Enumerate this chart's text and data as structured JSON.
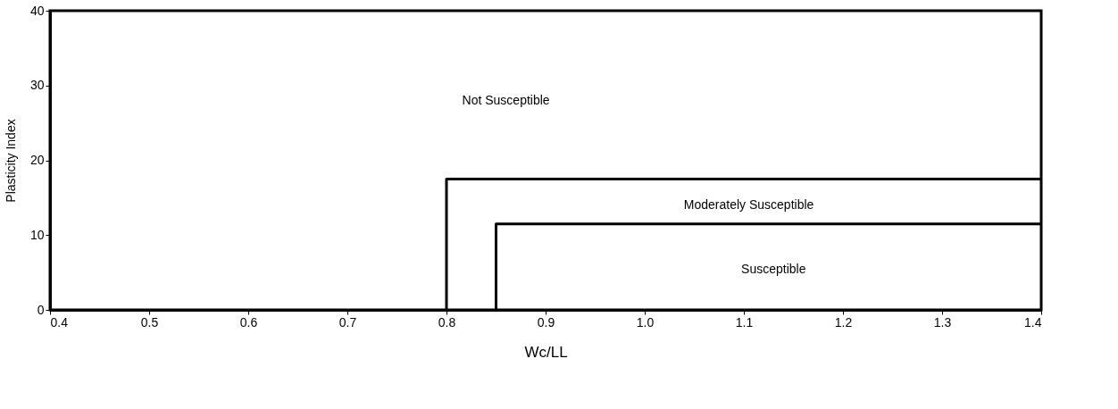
{
  "chart_data": {
    "type": "line",
    "xlabel": "Wc/LL",
    "ylabel": "Plasticity Index",
    "xlim": [
      0.4,
      1.4
    ],
    "xticks": [
      0.4,
      0.5,
      0.6,
      0.7,
      0.8,
      0.9,
      {
        "value": 1.0,
        "label": "1.0"
      },
      1.1,
      1.2,
      1.3,
      1.4
    ],
    "ylim": [
      0,
      40
    ],
    "yticks": [
      0,
      10,
      20,
      30,
      40
    ],
    "grid": false,
    "marker": "none",
    "line_style": "solid",
    "series": [
      {
        "color": "#000000",
        "x": [
          0.8,
          0.8,
          1.4
        ],
        "values": [
          0,
          17.5,
          17.5
        ]
      },
      {
        "color": "#000000",
        "x": [
          0.85,
          0.85,
          1.4
        ],
        "values": [
          0,
          11.5,
          11.5
        ]
      }
    ],
    "annotations": [
      "Not Susceptible",
      "Moderately Susceptible",
      "Susceptible"
    ]
  }
}
